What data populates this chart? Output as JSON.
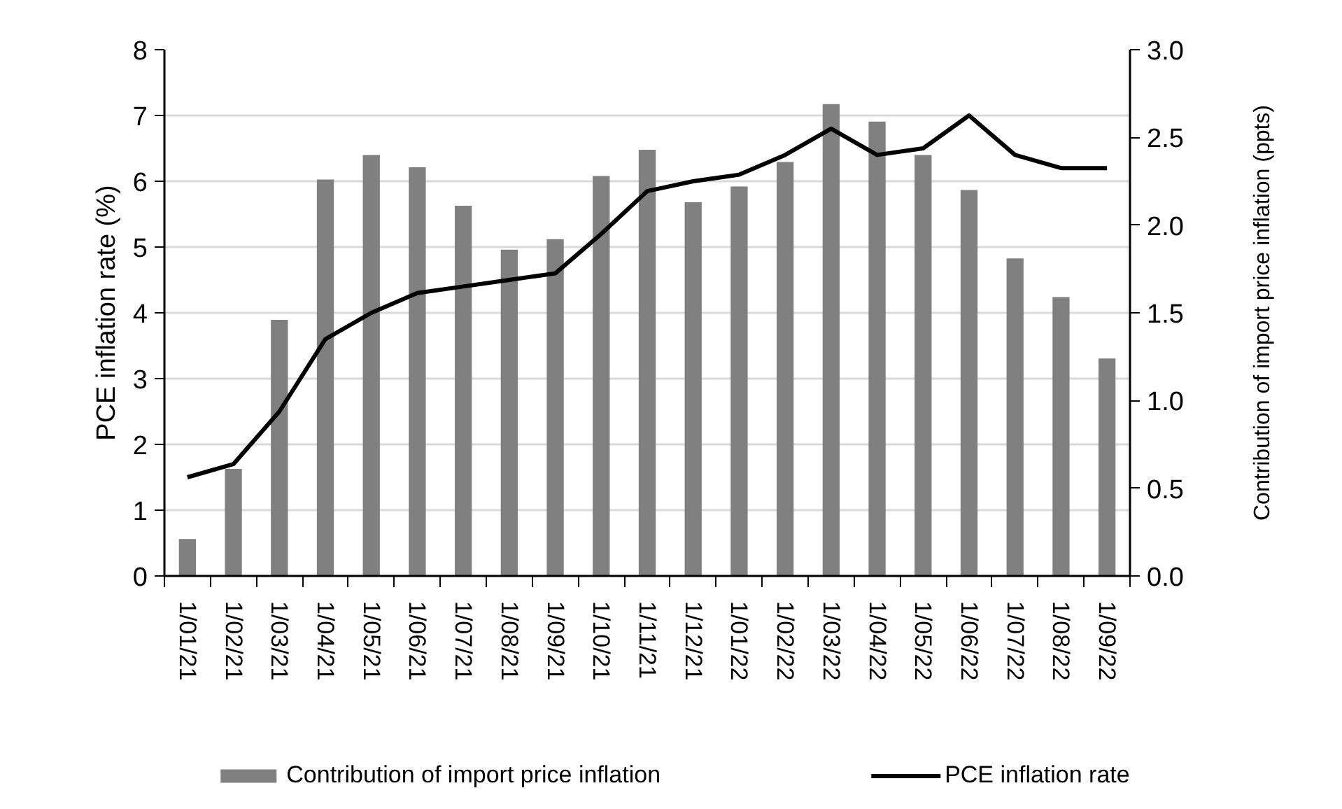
{
  "chart_data": {
    "type": "bar",
    "categories": [
      "1/01/21",
      "1/02/21",
      "1/03/21",
      "1/04/21",
      "1/05/21",
      "1/06/21",
      "1/07/21",
      "1/08/21",
      "1/09/21",
      "1/10/21",
      "1/11/21",
      "1/12/21",
      "1/01/22",
      "1/02/22",
      "1/03/22",
      "1/04/22",
      "1/05/22",
      "1/06/22",
      "1/07/22",
      "1/08/22",
      "1/09/22"
    ],
    "series": [
      {
        "name": "Contribution of import price inflation",
        "axis": "y2",
        "color": "#808080",
        "values": [
          0.21,
          0.61,
          1.46,
          2.26,
          2.4,
          2.33,
          2.11,
          1.86,
          1.92,
          2.28,
          2.43,
          2.13,
          2.22,
          2.36,
          2.69,
          2.59,
          2.4,
          2.2,
          1.81,
          1.59,
          1.24
        ]
      },
      {
        "name": "PCE inflation rate",
        "type": "line",
        "axis": "y",
        "color": "#000000",
        "values": [
          1.5,
          1.7,
          2.5,
          3.6,
          4.0,
          4.3,
          4.4,
          4.5,
          4.6,
          5.2,
          5.85,
          6.0,
          6.1,
          6.4,
          6.8,
          6.4,
          6.5,
          7.0,
          6.4,
          6.2,
          6.2
        ]
      }
    ],
    "ylabel": "PCE inflation rate (%)",
    "y2label": "Contribution of import price inflation (ppts)",
    "ylim": [
      0,
      8
    ],
    "yticks": [
      0,
      1,
      2,
      3,
      4,
      5,
      6,
      7,
      8
    ],
    "y2lim": [
      0,
      3
    ],
    "y2ticks": [
      {
        "value": 0,
        "label": "0.0"
      },
      0.5,
      {
        "value": 1,
        "label": "1.0"
      },
      1.5,
      {
        "value": 2,
        "label": "2.0"
      },
      2.5,
      {
        "value": 3,
        "label": "3.0"
      }
    ],
    "grid": "y",
    "legend": "bottom"
  }
}
